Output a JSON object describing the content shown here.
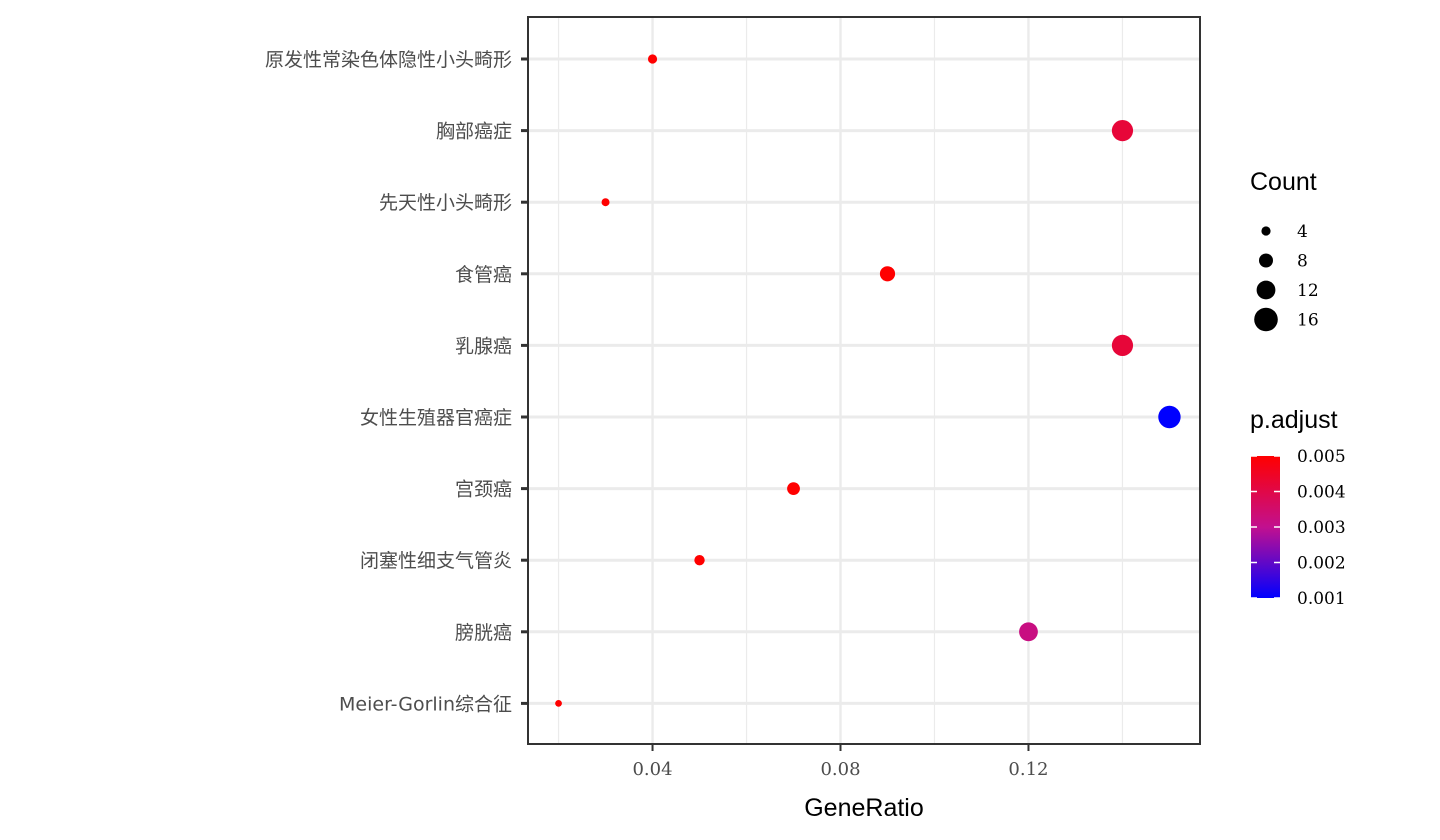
{
  "chart_data": {
    "type": "scatter",
    "xlabel": "GeneRatio",
    "ylabel": "",
    "xlim": [
      0.0135,
      0.1565
    ],
    "x_ticks": [
      0.04,
      0.08,
      0.12
    ],
    "x_tick_labels": [
      "0.04",
      "0.08",
      "0.12"
    ],
    "grid": true,
    "categories": [
      "原发性常染色体隐性小头畸形",
      "胸部癌症",
      "先天性小头畸形",
      "食管癌",
      "乳腺癌",
      "女性生殖器官癌症",
      "宫颈癌",
      "闭塞性细支气管炎",
      "膀胱癌",
      "Meier-Gorlin综合征"
    ],
    "points": [
      {
        "category": "原发性常染色体隐性小头畸形",
        "x": 0.04,
        "count": 4,
        "p_adjust": 0.005
      },
      {
        "category": "胸部癌症",
        "x": 0.14,
        "count": 14,
        "p_adjust": 0.0042
      },
      {
        "category": "先天性小头畸形",
        "x": 0.03,
        "count": 3,
        "p_adjust": 0.005
      },
      {
        "category": "食管癌",
        "x": 0.09,
        "count": 9,
        "p_adjust": 0.005
      },
      {
        "category": "乳腺癌",
        "x": 0.14,
        "count": 14,
        "p_adjust": 0.0042
      },
      {
        "category": "女性生殖器官癌症",
        "x": 0.15,
        "count": 15,
        "p_adjust": 0.001
      },
      {
        "category": "宫颈癌",
        "x": 0.07,
        "count": 7,
        "p_adjust": 0.005
      },
      {
        "category": "闭塞性细支气管炎",
        "x": 0.05,
        "count": 5,
        "p_adjust": 0.005
      },
      {
        "category": "膀胱癌",
        "x": 0.12,
        "count": 12,
        "p_adjust": 0.0032
      },
      {
        "category": "Meier-Gorlin综合征",
        "x": 0.02,
        "count": 2,
        "p_adjust": 0.005
      }
    ],
    "legend": {
      "placement": "right",
      "size": {
        "title": "Count",
        "values": [
          4,
          8,
          12,
          16
        ],
        "labels": [
          "4",
          "8",
          "12",
          "16"
        ]
      },
      "color": {
        "title": "p.adjust",
        "low_color": "#0000ff",
        "high_color": "#ff0000",
        "values": [
          0.005,
          0.004,
          0.003,
          0.002,
          0.001
        ],
        "labels": [
          "0.005",
          "0.004",
          "0.003",
          "0.002",
          "0.001"
        ],
        "range": [
          0.001,
          0.005
        ]
      }
    }
  },
  "colors": {
    "panel_border": "#333333",
    "grid": "#ebebeb",
    "tick_text": "#4d4d4d"
  }
}
